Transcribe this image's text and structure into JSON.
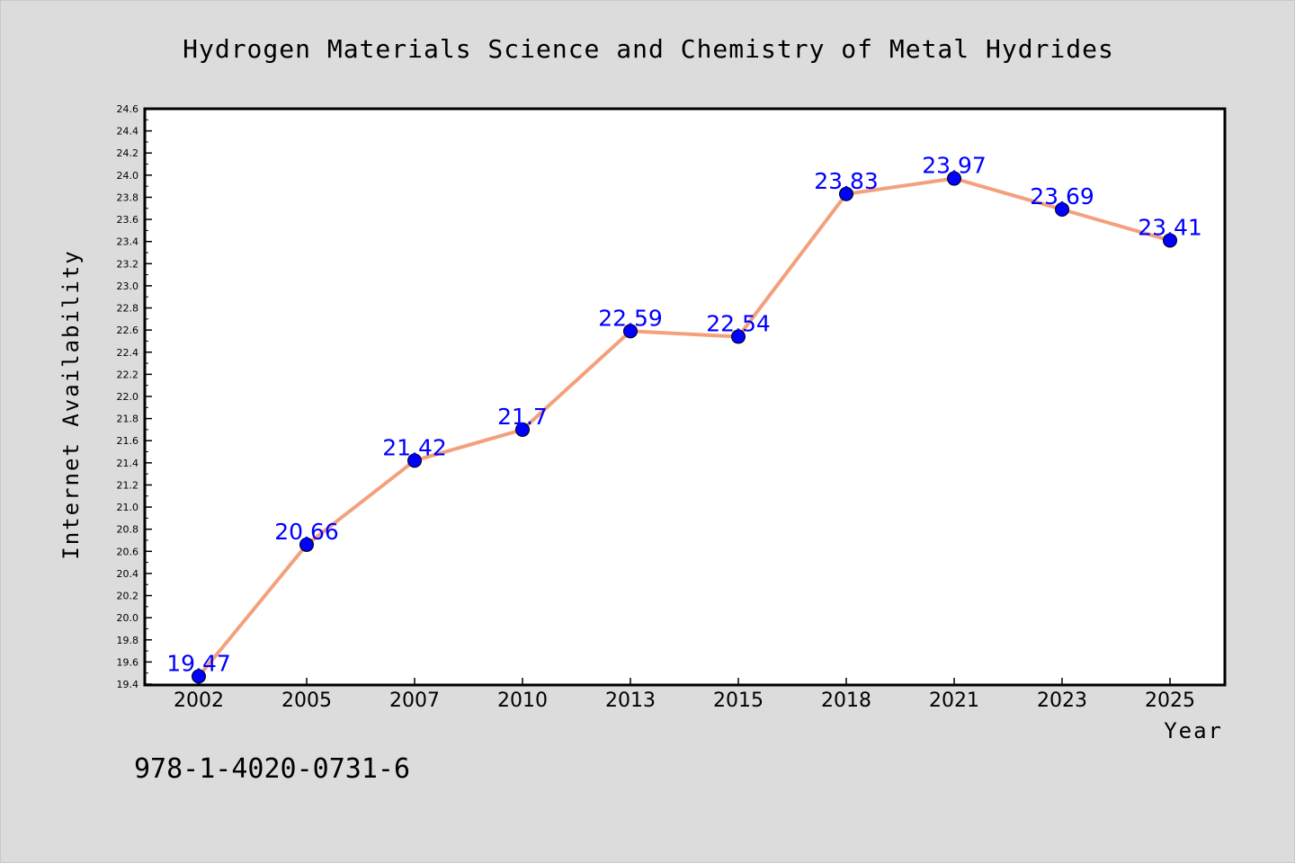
{
  "chart_data": {
    "type": "line",
    "title": "Hydrogen Materials Science and Chemistry of Metal Hydrides",
    "xlabel": "Year",
    "ylabel": "Internet Availability",
    "categories": [
      "2002",
      "2005",
      "2007",
      "2010",
      "2013",
      "2015",
      "2018",
      "2021",
      "2023",
      "2025"
    ],
    "series": [
      {
        "values": [
          19.47,
          20.66,
          21.42,
          21.7,
          22.59,
          22.54,
          23.83,
          23.97,
          23.69,
          23.41
        ]
      }
    ],
    "data_labels": [
      "19.47",
      "20.66",
      "21.42",
      "21.7",
      "22.59",
      "22.54",
      "23.83",
      "23.97",
      "23.69",
      "23.41"
    ],
    "ylim": [
      19.4,
      24.6
    ],
    "ytick_step": 0.2,
    "grid": false,
    "legend": "none",
    "colors": {
      "line": "#f4a07c",
      "marker": "#0000ff",
      "label": "#0000ff",
      "background": "#dcdcdc",
      "plot_area": "#ffffff"
    }
  },
  "footer": {
    "isbn": "978-1-4020-0731-6"
  }
}
